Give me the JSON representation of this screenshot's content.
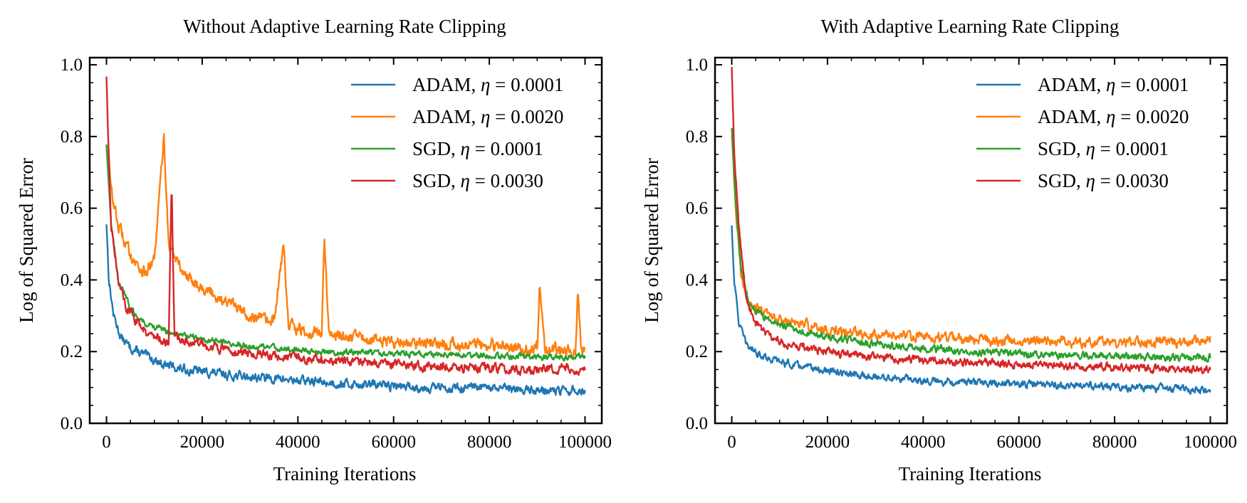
{
  "chart_data": [
    {
      "type": "line",
      "title": "Without Adaptive Learning Rate Clipping",
      "xlabel": "Training Iterations",
      "ylabel": "Log of Squared Error",
      "xlim": [
        -3500,
        103500
      ],
      "ylim": [
        0.0,
        1.02
      ],
      "xticks": [
        0,
        20000,
        40000,
        60000,
        80000,
        100000
      ],
      "xtick_labels": [
        "0",
        "20000",
        "40000",
        "60000",
        "80000",
        "100000"
      ],
      "yticks": [
        0.0,
        0.2,
        0.4,
        0.6,
        0.8,
        1.0
      ],
      "ytick_labels": [
        "0.0",
        "0.2",
        "0.4",
        "0.6",
        "0.8",
        "1.0"
      ],
      "grid": false,
      "legend": "top-right",
      "series": [
        {
          "name": "ADAM, η = 0.0001",
          "legend_prefix": "ADAM, ",
          "legend_eta": "η",
          "legend_value": " = 0.0001",
          "color": "#1f77b4",
          "points": [
            [
              0,
              0.56
            ],
            [
              500,
              0.4
            ],
            [
              1500,
              0.3
            ],
            [
              3000,
              0.24
            ],
            [
              5000,
              0.21
            ],
            [
              8000,
              0.19
            ],
            [
              12000,
              0.165
            ],
            [
              16000,
              0.15
            ],
            [
              20000,
              0.145
            ],
            [
              25000,
              0.135
            ],
            [
              30000,
              0.13
            ],
            [
              35000,
              0.125
            ],
            [
              40000,
              0.12
            ],
            [
              45000,
              0.115
            ],
            [
              50000,
              0.11
            ],
            [
              55000,
              0.108
            ],
            [
              60000,
              0.105
            ],
            [
              65000,
              0.1
            ],
            [
              70000,
              0.1
            ],
            [
              75000,
              0.098
            ],
            [
              80000,
              0.097
            ],
            [
              85000,
              0.095
            ],
            [
              90000,
              0.093
            ],
            [
              95000,
              0.09
            ],
            [
              100000,
              0.09
            ]
          ]
        },
        {
          "name": "ADAM, η = 0.0020",
          "legend_prefix": "ADAM, ",
          "legend_eta": "η",
          "legend_value": " = 0.0020",
          "color": "#ff7f0e",
          "points": [
            [
              0,
              0.78
            ],
            [
              1000,
              0.65
            ],
            [
              2500,
              0.55
            ],
            [
              4000,
              0.5
            ],
            [
              6000,
              0.45
            ],
            [
              8000,
              0.42
            ],
            [
              10000,
              0.45
            ],
            [
              12000,
              0.8
            ],
            [
              13000,
              0.5
            ],
            [
              16000,
              0.42
            ],
            [
              20000,
              0.38
            ],
            [
              25000,
              0.34
            ],
            [
              30000,
              0.3
            ],
            [
              35000,
              0.28
            ],
            [
              37000,
              0.5
            ],
            [
              38000,
              0.28
            ],
            [
              40000,
              0.26
            ],
            [
              45000,
              0.25
            ],
            [
              45500,
              0.53
            ],
            [
              46500,
              0.25
            ],
            [
              50000,
              0.24
            ],
            [
              55000,
              0.235
            ],
            [
              60000,
              0.23
            ],
            [
              65000,
              0.225
            ],
            [
              70000,
              0.22
            ],
            [
              75000,
              0.22
            ],
            [
              80000,
              0.215
            ],
            [
              85000,
              0.21
            ],
            [
              90000,
              0.21
            ],
            [
              90500,
              0.39
            ],
            [
              91500,
              0.21
            ],
            [
              95000,
              0.205
            ],
            [
              98000,
              0.2
            ],
            [
              98500,
              0.36
            ],
            [
              99200,
              0.2
            ],
            [
              100000,
              0.19
            ]
          ]
        },
        {
          "name": "SGD, η = 0.0001",
          "legend_prefix": "SGD, ",
          "legend_eta": "η",
          "legend_value": " = 0.0001",
          "color": "#2ca02c",
          "points": [
            [
              0,
              0.78
            ],
            [
              1000,
              0.55
            ],
            [
              2500,
              0.4
            ],
            [
              5000,
              0.32
            ],
            [
              8000,
              0.28
            ],
            [
              12000,
              0.26
            ],
            [
              16000,
              0.245
            ],
            [
              20000,
              0.235
            ],
            [
              25000,
              0.225
            ],
            [
              30000,
              0.215
            ],
            [
              35000,
              0.21
            ],
            [
              40000,
              0.205
            ],
            [
              45000,
              0.2
            ],
            [
              50000,
              0.198
            ],
            [
              55000,
              0.196
            ],
            [
              60000,
              0.194
            ],
            [
              65000,
              0.192
            ],
            [
              70000,
              0.19
            ],
            [
              75000,
              0.19
            ],
            [
              80000,
              0.188
            ],
            [
              85000,
              0.187
            ],
            [
              90000,
              0.186
            ],
            [
              95000,
              0.185
            ],
            [
              100000,
              0.185
            ]
          ]
        },
        {
          "name": "SGD, η = 0.0030",
          "legend_prefix": "SGD, ",
          "legend_eta": "η",
          "legend_value": " = 0.0030",
          "color": "#d62728",
          "points": [
            [
              0,
              0.97
            ],
            [
              300,
              0.8
            ],
            [
              1000,
              0.55
            ],
            [
              2500,
              0.4
            ],
            [
              4000,
              0.33
            ],
            [
              6000,
              0.29
            ],
            [
              9000,
              0.25
            ],
            [
              12000,
              0.23
            ],
            [
              13000,
              0.22
            ],
            [
              13600,
              0.68
            ],
            [
              14200,
              0.25
            ],
            [
              16000,
              0.23
            ],
            [
              20000,
              0.22
            ],
            [
              25000,
              0.205
            ],
            [
              30000,
              0.195
            ],
            [
              35000,
              0.185
            ],
            [
              40000,
              0.18
            ],
            [
              45000,
              0.175
            ],
            [
              50000,
              0.17
            ],
            [
              55000,
              0.168
            ],
            [
              60000,
              0.165
            ],
            [
              65000,
              0.16
            ],
            [
              70000,
              0.158
            ],
            [
              75000,
              0.155
            ],
            [
              80000,
              0.155
            ],
            [
              85000,
              0.152
            ],
            [
              90000,
              0.15
            ],
            [
              95000,
              0.15
            ],
            [
              100000,
              0.15
            ]
          ]
        }
      ]
    },
    {
      "type": "line",
      "title": "With Adaptive Learning Rate Clipping",
      "xlabel": "Training Iterations",
      "ylabel": "Log of Squared Error",
      "xlim": [
        -3500,
        103500
      ],
      "ylim": [
        0.0,
        1.02
      ],
      "xticks": [
        0,
        20000,
        40000,
        60000,
        80000,
        100000
      ],
      "xtick_labels": [
        "0",
        "20000",
        "40000",
        "60000",
        "80000",
        "100000"
      ],
      "yticks": [
        0.0,
        0.2,
        0.4,
        0.6,
        0.8,
        1.0
      ],
      "ytick_labels": [
        "0.0",
        "0.2",
        "0.4",
        "0.6",
        "0.8",
        "1.0"
      ],
      "grid": false,
      "legend": "top-right",
      "series": [
        {
          "name": "ADAM, η = 0.0001",
          "legend_prefix": "ADAM, ",
          "legend_eta": "η",
          "legend_value": " = 0.0001",
          "color": "#1f77b4",
          "points": [
            [
              0,
              0.55
            ],
            [
              500,
              0.4
            ],
            [
              1500,
              0.28
            ],
            [
              3000,
              0.22
            ],
            [
              5000,
              0.2
            ],
            [
              8000,
              0.18
            ],
            [
              12000,
              0.165
            ],
            [
              16000,
              0.155
            ],
            [
              20000,
              0.145
            ],
            [
              25000,
              0.135
            ],
            [
              30000,
              0.13
            ],
            [
              35000,
              0.125
            ],
            [
              40000,
              0.12
            ],
            [
              45000,
              0.117
            ],
            [
              50000,
              0.115
            ],
            [
              55000,
              0.112
            ],
            [
              60000,
              0.11
            ],
            [
              65000,
              0.108
            ],
            [
              70000,
              0.105
            ],
            [
              75000,
              0.103
            ],
            [
              80000,
              0.1
            ],
            [
              85000,
              0.1
            ],
            [
              90000,
              0.098
            ],
            [
              95000,
              0.095
            ],
            [
              100000,
              0.09
            ]
          ]
        },
        {
          "name": "ADAM, η = 0.0020",
          "legend_prefix": "ADAM, ",
          "legend_eta": "η",
          "legend_value": " = 0.0020",
          "color": "#ff7f0e",
          "points": [
            [
              0,
              0.8
            ],
            [
              800,
              0.6
            ],
            [
              2000,
              0.4
            ],
            [
              3500,
              0.34
            ],
            [
              6000,
              0.31
            ],
            [
              9000,
              0.29
            ],
            [
              13000,
              0.28
            ],
            [
              17000,
              0.27
            ],
            [
              20000,
              0.26
            ],
            [
              25000,
              0.255
            ],
            [
              30000,
              0.25
            ],
            [
              35000,
              0.245
            ],
            [
              40000,
              0.24
            ],
            [
              45000,
              0.238
            ],
            [
              50000,
              0.235
            ],
            [
              55000,
              0.232
            ],
            [
              60000,
              0.23
            ],
            [
              65000,
              0.23
            ],
            [
              70000,
              0.228
            ],
            [
              75000,
              0.227
            ],
            [
              80000,
              0.226
            ],
            [
              85000,
              0.225
            ],
            [
              90000,
              0.225
            ],
            [
              95000,
              0.225
            ],
            [
              100000,
              0.24
            ]
          ]
        },
        {
          "name": "SGD, η = 0.0001",
          "legend_prefix": "SGD, ",
          "legend_eta": "η",
          "legend_value": " = 0.0001",
          "color": "#2ca02c",
          "points": [
            [
              0,
              0.82
            ],
            [
              800,
              0.62
            ],
            [
              2000,
              0.42
            ],
            [
              3500,
              0.34
            ],
            [
              6000,
              0.3
            ],
            [
              9000,
              0.28
            ],
            [
              13000,
              0.265
            ],
            [
              17000,
              0.25
            ],
            [
              20000,
              0.24
            ],
            [
              25000,
              0.23
            ],
            [
              30000,
              0.22
            ],
            [
              35000,
              0.215
            ],
            [
              40000,
              0.21
            ],
            [
              45000,
              0.205
            ],
            [
              50000,
              0.2
            ],
            [
              55000,
              0.198
            ],
            [
              60000,
              0.195
            ],
            [
              65000,
              0.192
            ],
            [
              70000,
              0.19
            ],
            [
              75000,
              0.188
            ],
            [
              80000,
              0.186
            ],
            [
              85000,
              0.185
            ],
            [
              90000,
              0.184
            ],
            [
              95000,
              0.183
            ],
            [
              100000,
              0.182
            ]
          ]
        },
        {
          "name": "SGD, η = 0.0030",
          "legend_prefix": "SGD, ",
          "legend_eta": "η",
          "legend_value": " = 0.0030",
          "color": "#d62728",
          "points": [
            [
              0,
              0.99
            ],
            [
              500,
              0.75
            ],
            [
              1500,
              0.55
            ],
            [
              3000,
              0.35
            ],
            [
              5000,
              0.28
            ],
            [
              8000,
              0.24
            ],
            [
              12000,
              0.22
            ],
            [
              16000,
              0.21
            ],
            [
              20000,
              0.2
            ],
            [
              25000,
              0.19
            ],
            [
              30000,
              0.185
            ],
            [
              35000,
              0.18
            ],
            [
              40000,
              0.175
            ],
            [
              45000,
              0.172
            ],
            [
              50000,
              0.17
            ],
            [
              55000,
              0.168
            ],
            [
              60000,
              0.165
            ],
            [
              65000,
              0.163
            ],
            [
              70000,
              0.16
            ],
            [
              75000,
              0.158
            ],
            [
              80000,
              0.157
            ],
            [
              85000,
              0.155
            ],
            [
              90000,
              0.153
            ],
            [
              95000,
              0.152
            ],
            [
              100000,
              0.15
            ]
          ]
        }
      ]
    }
  ]
}
